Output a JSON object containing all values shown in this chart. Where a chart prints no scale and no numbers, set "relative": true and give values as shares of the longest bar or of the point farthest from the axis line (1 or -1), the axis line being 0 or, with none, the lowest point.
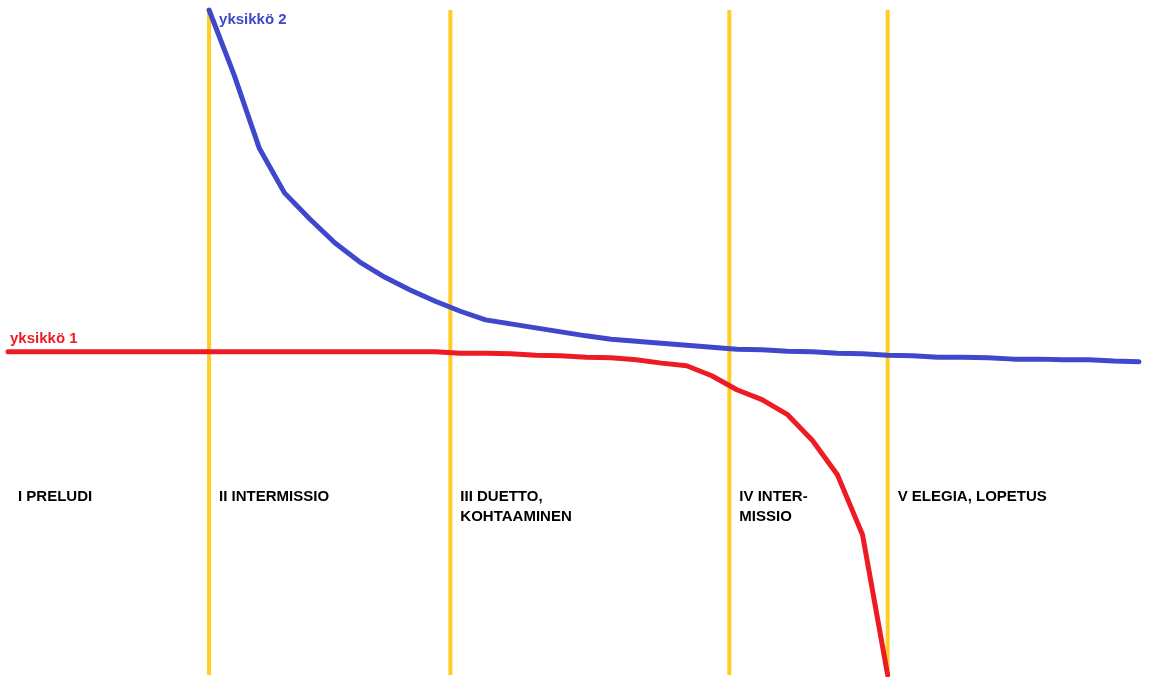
{
  "chart_data": {
    "type": "line",
    "relative": true,
    "tick_labels": false,
    "line_style": "solid",
    "categories": [
      null,
      null,
      null,
      null,
      null,
      null,
      null,
      null,
      null,
      null,
      null,
      null,
      null,
      null,
      null,
      null,
      null,
      null,
      null,
      null,
      null,
      null,
      null,
      null,
      null,
      null,
      null,
      null,
      null,
      null,
      null,
      null,
      null,
      null,
      null,
      null,
      null,
      null,
      null,
      null,
      null,
      null,
      null,
      null,
      null,
      null
    ],
    "series": [
      {
        "name": "yksikkö 1",
        "color": "#ed1c24",
        "values": [
          0.486,
          0.486,
          0.486,
          0.486,
          0.486,
          0.486,
          0.486,
          0.486,
          0.486,
          0.486,
          0.486,
          0.486,
          0.486,
          0.486,
          0.486,
          0.486,
          0.486,
          0.486,
          0.484,
          0.484,
          0.483,
          0.481,
          0.48,
          0.478,
          0.477,
          0.474,
          0.469,
          0.465,
          0.45,
          0.429,
          0.414,
          0.392,
          0.353,
          0.301,
          0.211,
          0,
          null,
          null,
          null,
          null,
          null,
          null,
          null,
          null,
          null,
          null
        ]
      },
      {
        "name": "yksikkö 2",
        "color": "#3f48cc",
        "values": [
          null,
          null,
          null,
          null,
          null,
          null,
          null,
          null,
          1,
          0.902,
          0.792,
          0.725,
          0.686,
          0.65,
          0.621,
          0.598,
          0.579,
          0.562,
          0.547,
          0.534,
          0.528,
          0.522,
          0.516,
          0.51,
          0.505,
          0.502,
          0.499,
          0.496,
          0.493,
          0.49,
          0.489,
          0.487,
          0.486,
          0.484,
          0.483,
          0.481,
          0.48,
          0.478,
          0.478,
          0.477,
          0.475,
          0.475,
          0.474,
          0.474,
          0.472,
          0.471
        ]
      }
    ],
    "annotations": [
      "I PRELUDI",
      "II INTERMISSIO",
      "III DUETTO,\nKOHTAAMINEN",
      "IV INTER-\nMISSIO",
      "V ELEGIA, LOPETUS"
    ]
  }
}
